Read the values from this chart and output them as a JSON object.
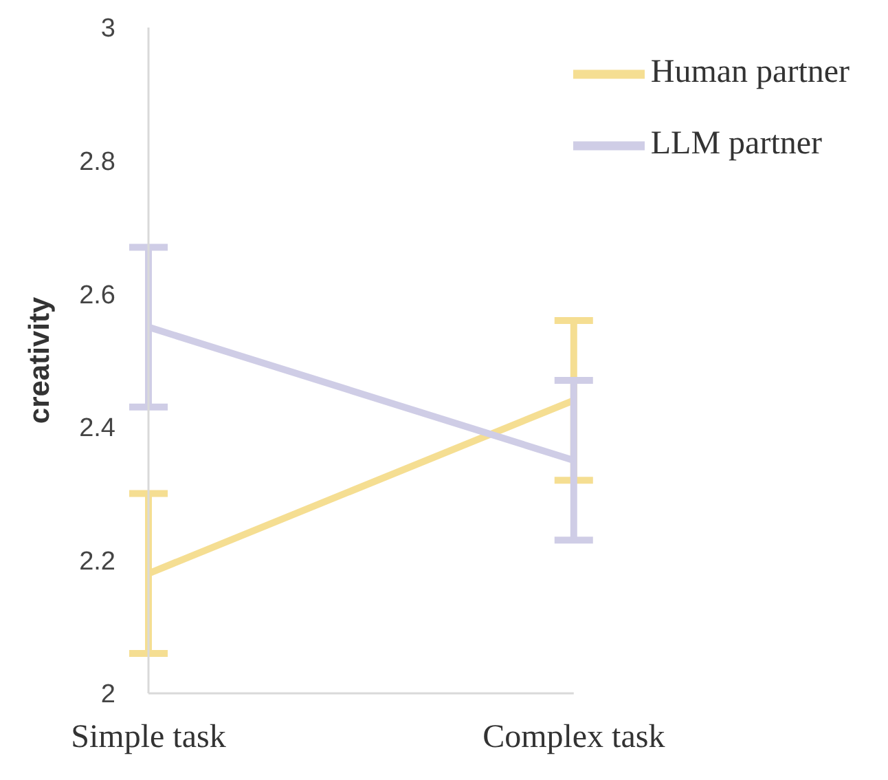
{
  "chart_data": {
    "type": "line",
    "ylabel": "creativity",
    "categories": [
      "Simple task",
      "Complex task"
    ],
    "series": [
      {
        "name": "Human partner",
        "color": "#f5de92",
        "values": [
          2.18,
          2.44
        ],
        "errors": [
          0.12,
          0.12
        ]
      },
      {
        "name": "LLM partner",
        "color": "#cfcde6",
        "values": [
          2.55,
          2.35
        ],
        "errors": [
          0.12,
          0.12
        ]
      }
    ],
    "ylim": [
      2,
      3
    ],
    "yticks": [
      2,
      2.2,
      2.4,
      2.6,
      2.8,
      3
    ],
    "grid": false,
    "legend": "top right",
    "marker": "none",
    "line_style": "solid"
  }
}
